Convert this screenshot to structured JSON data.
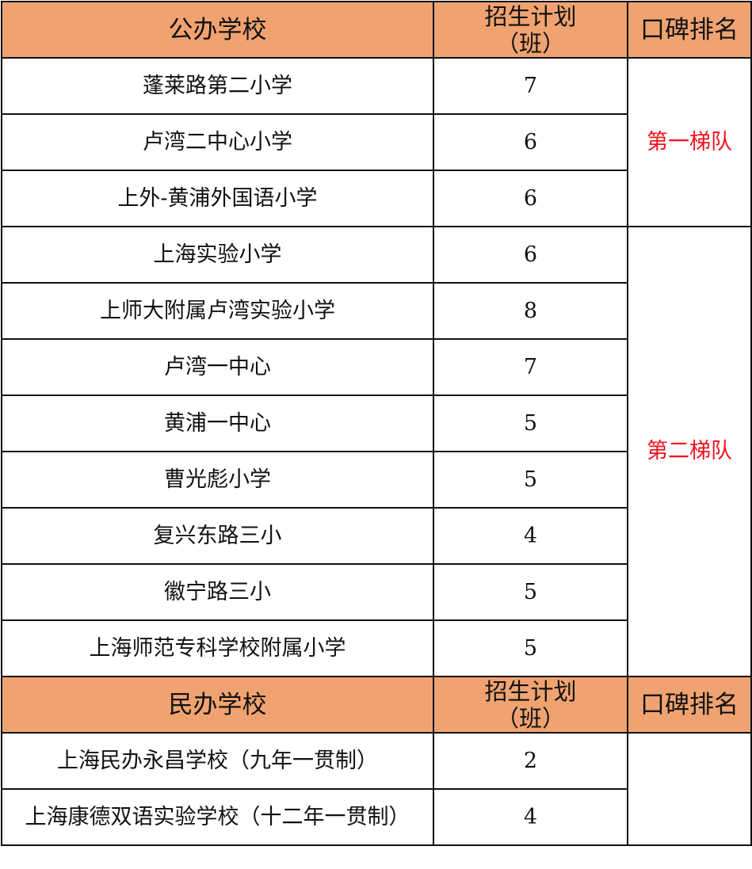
{
  "colors": {
    "header_bg": "#F0A370",
    "tier_text": "#f0141e"
  },
  "public": {
    "headers": [
      "公办学校",
      "招生计划",
      "（班）",
      "口碑排名"
    ],
    "rows": [
      {
        "name": "蓬莱路第二小学",
        "classes": "7"
      },
      {
        "name": "卢湾二中心小学",
        "classes": "6"
      },
      {
        "name": "上外-黄浦外国语小学",
        "classes": "6"
      },
      {
        "name": "上海实验小学",
        "classes": "6"
      },
      {
        "name": "上师大附属卢湾实验小学",
        "classes": "8"
      },
      {
        "name": "卢湾一中心",
        "classes": "7"
      },
      {
        "name": "黄浦一中心",
        "classes": "5"
      },
      {
        "name": "曹光彪小学",
        "classes": "5"
      },
      {
        "name": "复兴东路三小",
        "classes": "4"
      },
      {
        "name": "徽宁路三小",
        "classes": "5"
      },
      {
        "name": "上海师范专科学校附属小学",
        "classes": "5"
      }
    ],
    "tiers": [
      "第一梯队",
      "第二梯队"
    ]
  },
  "private": {
    "headers": [
      "民办学校",
      "招生计划",
      "（班）",
      "口碑排名"
    ],
    "rows": [
      {
        "name": "上海民办永昌学校（九年一贯制）",
        "classes": "2"
      },
      {
        "name": "上海康德双语实验学校（十二年一贯制）",
        "classes": "4"
      }
    ]
  }
}
